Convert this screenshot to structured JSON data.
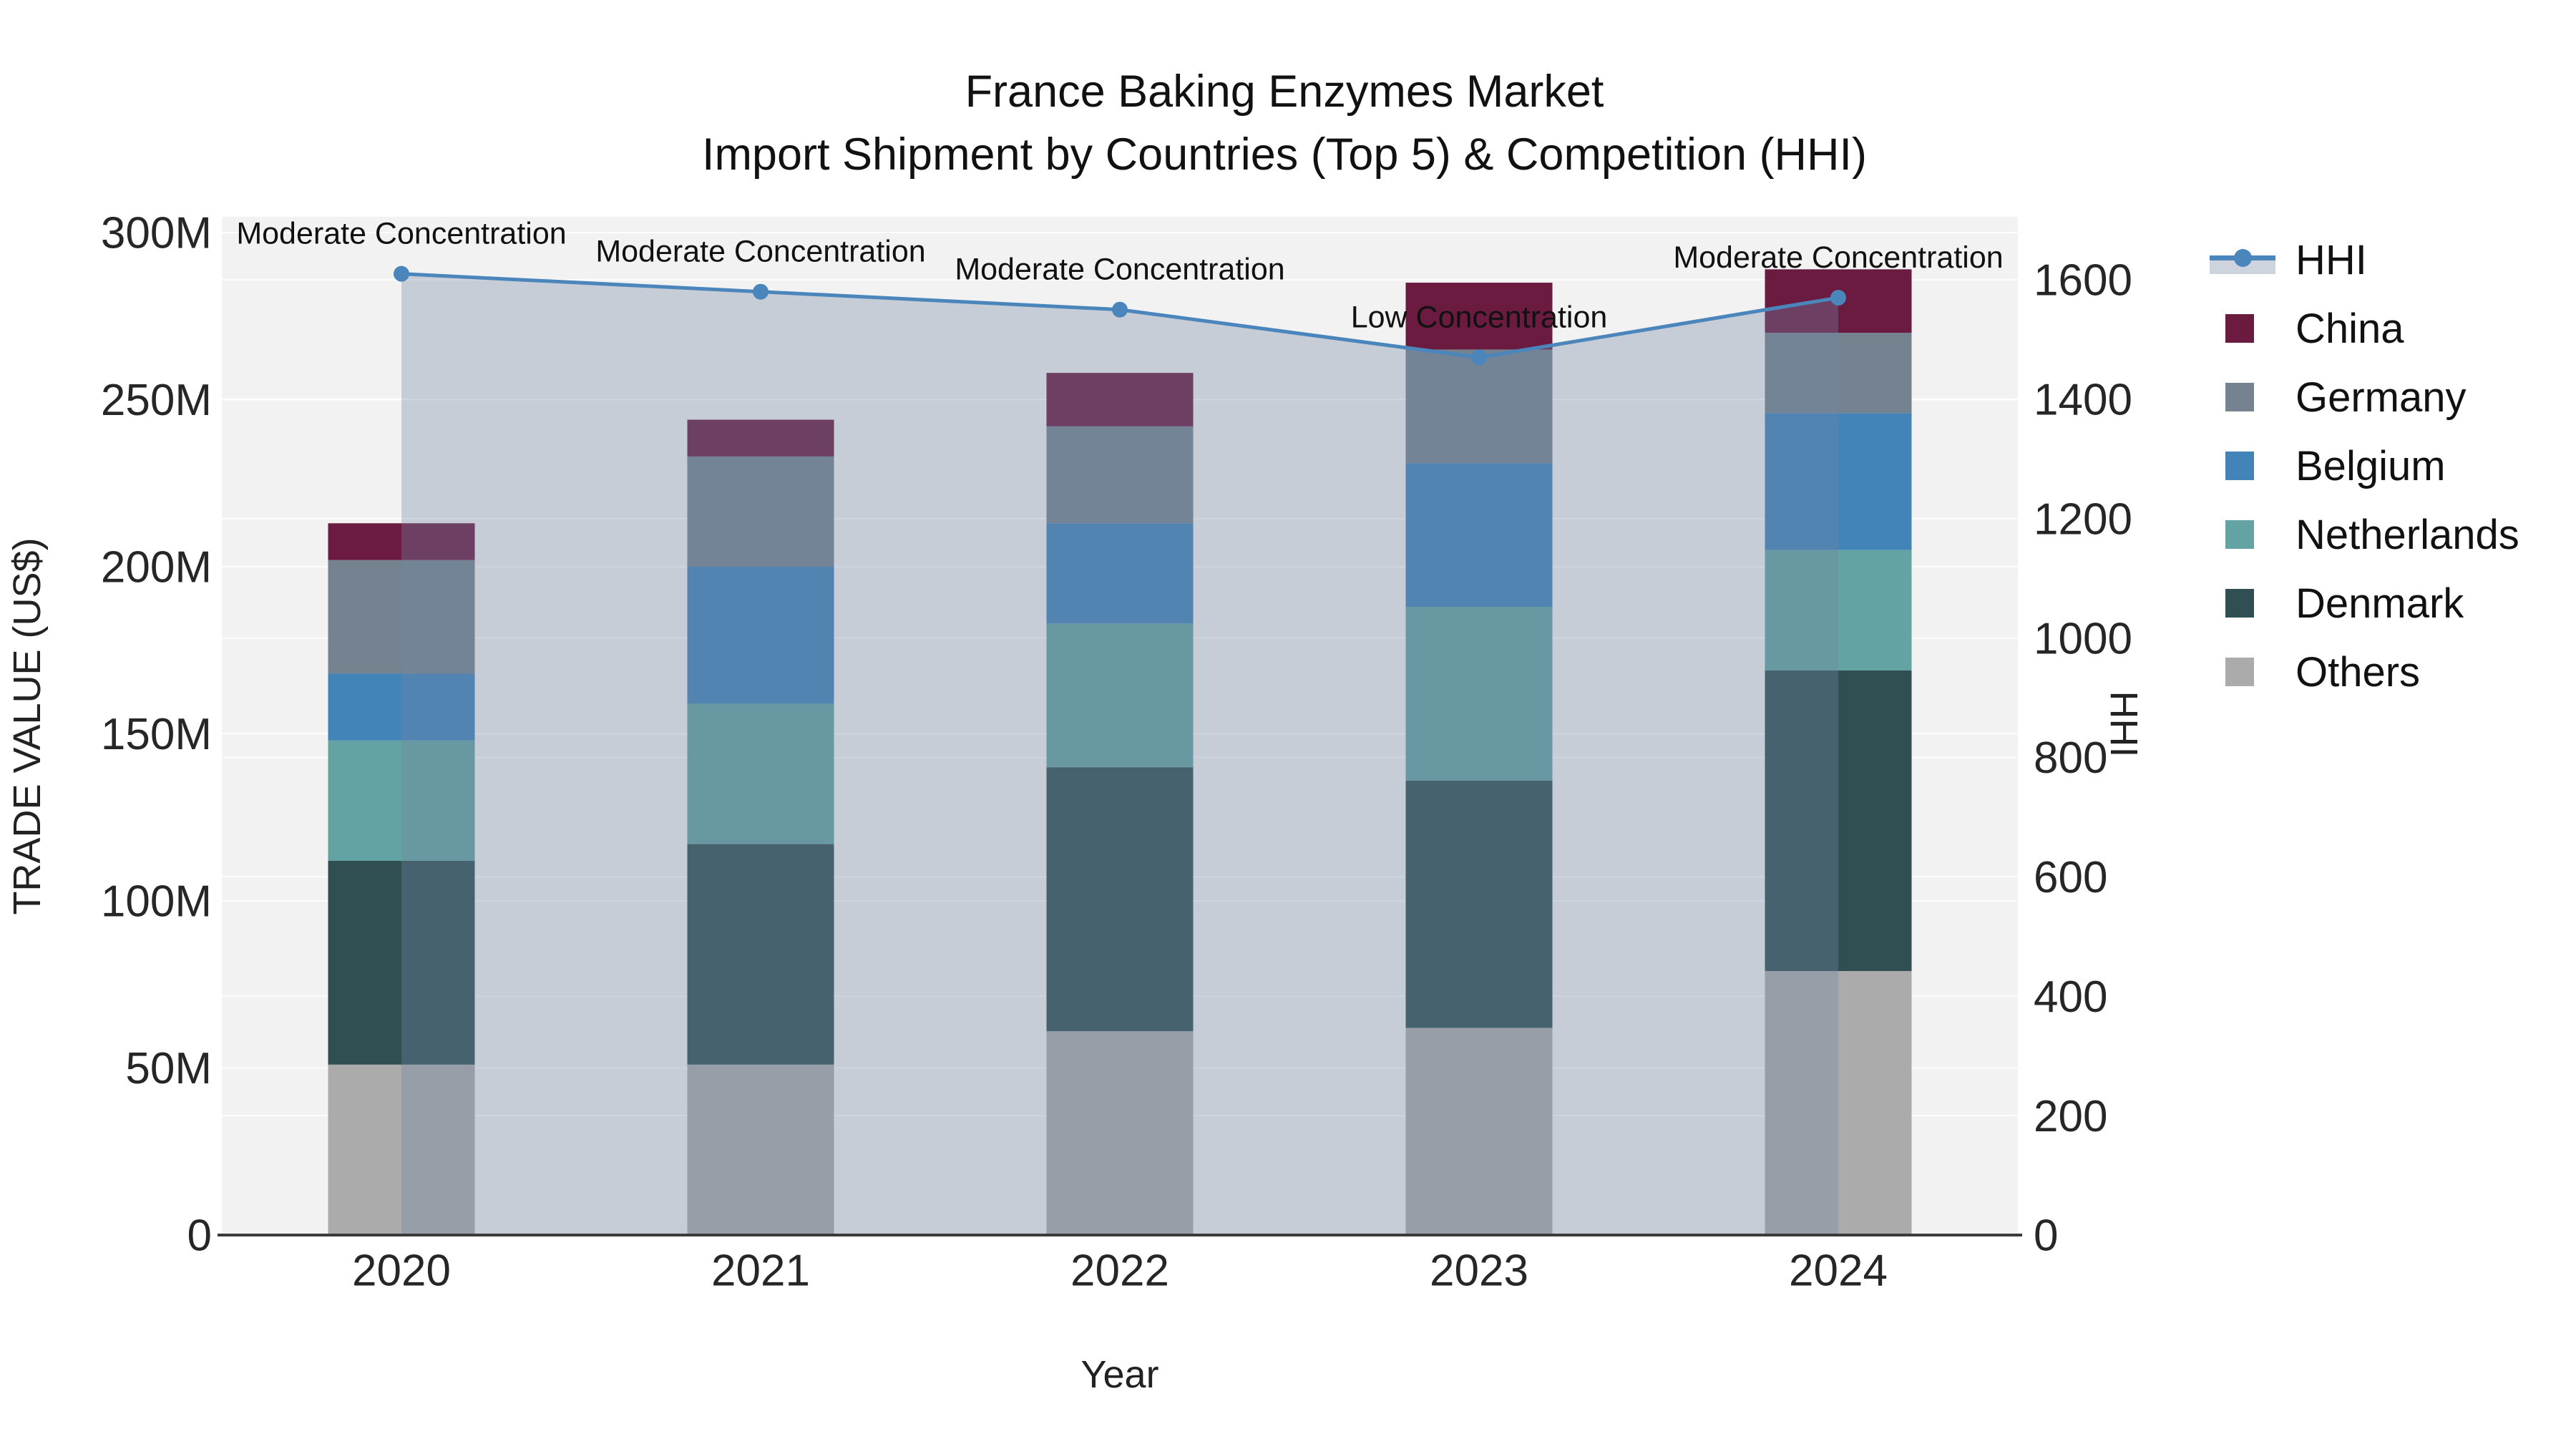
{
  "title": {
    "line1": "France Baking Enzymes Market",
    "line2": "Import Shipment by Countries (Top 5) & Competition (HHI)"
  },
  "axes": {
    "x": {
      "title": "Year",
      "categories": [
        "2020",
        "2021",
        "2022",
        "2023",
        "2024"
      ]
    },
    "y_left": {
      "title": "TRADE VALUE (US$)",
      "range": [
        0,
        300
      ],
      "ticks": [
        {
          "value": 0,
          "label": "0"
        },
        {
          "value": 50,
          "label": "50M"
        },
        {
          "value": 100,
          "label": "100M"
        },
        {
          "value": 150,
          "label": "150M"
        },
        {
          "value": 200,
          "label": "200M"
        },
        {
          "value": 250,
          "label": "250M"
        },
        {
          "value": 300,
          "label": "300M"
        }
      ]
    },
    "y_right": {
      "title": "HHI",
      "range": [
        0,
        1600
      ],
      "ticks": [
        {
          "value": 0,
          "label": "0"
        },
        {
          "value": 200,
          "label": "200"
        },
        {
          "value": 400,
          "label": "400"
        },
        {
          "value": 600,
          "label": "600"
        },
        {
          "value": 800,
          "label": "800"
        },
        {
          "value": 1000,
          "label": "1000"
        },
        {
          "value": 1200,
          "label": "1200"
        },
        {
          "value": 1400,
          "label": "1400"
        },
        {
          "value": 1600,
          "label": "1600"
        }
      ]
    }
  },
  "legend": {
    "items": [
      {
        "label": "HHI",
        "symbol": "line-marker",
        "line_color": "#4A86BB",
        "fill_color": "#CDD4DE"
      },
      {
        "label": "China",
        "symbol": "square",
        "color": "#6B1B40"
      },
      {
        "label": "Germany",
        "symbol": "square",
        "color": "#74838F"
      },
      {
        "label": "Belgium",
        "symbol": "square",
        "color": "#4283B8"
      },
      {
        "label": "Netherlands",
        "symbol": "square",
        "color": "#63A3A3"
      },
      {
        "label": "Denmark",
        "symbol": "square",
        "color": "#2F4F52"
      },
      {
        "label": "Others",
        "symbol": "square",
        "color": "#ABABAB"
      }
    ]
  },
  "chart_data": {
    "type": "bar",
    "subtype": "stacked-bar-with-line",
    "unit": "Million US$",
    "categories": [
      "2020",
      "2021",
      "2022",
      "2023",
      "2024"
    ],
    "series": [
      {
        "name": "Others",
        "color": "#ABABAB",
        "values": [
          51,
          51,
          61,
          62,
          79
        ]
      },
      {
        "name": "Denmark",
        "color": "#2F4F52",
        "values": [
          61,
          66,
          79,
          74,
          90
        ]
      },
      {
        "name": "Netherlands",
        "color": "#63A3A3",
        "values": [
          36,
          42,
          43,
          52,
          36
        ]
      },
      {
        "name": "Belgium",
        "color": "#4283B8",
        "values": [
          20,
          41,
          30,
          43,
          41
        ]
      },
      {
        "name": "Germany",
        "color": "#74838F",
        "values": [
          34,
          33,
          29,
          34,
          24
        ]
      },
      {
        "name": "China",
        "color": "#6B1B40",
        "values": [
          11,
          11,
          16,
          20,
          19
        ]
      }
    ],
    "stack_totals": [
      213,
      244,
      258,
      285,
      289
    ],
    "hhi": {
      "name": "HHI",
      "color": "#4A86BB",
      "area_fill": "rgba(113,134,163,0.34)",
      "values": [
        1610,
        1580,
        1550,
        1470,
        1570
      ]
    },
    "annotations": [
      "Moderate Concentration",
      "Moderate Concentration",
      "Moderate Concentration",
      "Low Concentration",
      "Moderate Concentration"
    ],
    "title": "France Baking Enzymes Market — Import Shipment by Countries (Top 5) & Competition (HHI)",
    "xlabel": "Year",
    "ylabel_left": "TRADE VALUE (US$)",
    "ylabel_right": "HHI",
    "ylim_left": [
      0,
      300
    ],
    "ylim_right": [
      0,
      1600
    ],
    "grid": true,
    "legend_position": "right"
  }
}
